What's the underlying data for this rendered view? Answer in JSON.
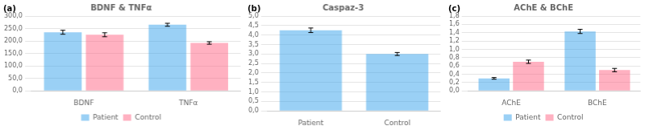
{
  "chart_data": [
    {
      "type": "bar",
      "title": "BDNF & TNFα",
      "annotations": [
        {
          "text": "(a)"
        }
      ],
      "categories": [
        "BDNF",
        "TNFα"
      ],
      "series": [
        {
          "name": "Patient",
          "values": [
            235,
            265
          ],
          "errors": [
            8,
            6
          ]
        },
        {
          "name": "Control",
          "values": [
            225,
            192
          ],
          "errors": [
            8,
            5
          ]
        }
      ],
      "ylim": [
        0,
        300
      ],
      "yticks": [
        {
          "value": 0,
          "label": "0,0"
        },
        {
          "value": 50,
          "label": "50,0"
        },
        {
          "value": 100,
          "label": "100,0"
        },
        {
          "value": 150,
          "label": "150,0"
        },
        {
          "value": 200,
          "label": "200,0"
        },
        {
          "value": 250,
          "label": "250,0"
        },
        {
          "value": 300,
          "label": "300,0"
        }
      ],
      "grid": true,
      "legend": "bottom"
    },
    {
      "type": "bar",
      "title": "Caspaz-3",
      "annotations": [
        {
          "text": "(b)"
        }
      ],
      "categories": [
        "Patient",
        "Control"
      ],
      "values": [
        4.25,
        3.0
      ],
      "errors": [
        0.12,
        0.08
      ],
      "ylim": [
        0,
        5
      ],
      "yticks": [
        {
          "value": 0,
          "label": "0,0"
        },
        {
          "value": 0.5,
          "label": "0,5"
        },
        {
          "value": 1.0,
          "label": "1,0"
        },
        {
          "value": 1.5,
          "label": "1,5"
        },
        {
          "value": 2.0,
          "label": "2,0"
        },
        {
          "value": 2.5,
          "label": "2,5"
        },
        {
          "value": 3.0,
          "label": "3,0"
        },
        {
          "value": 3.5,
          "label": "3,5"
        },
        {
          "value": 4.0,
          "label": "4,0"
        },
        {
          "value": 4.5,
          "label": "4,5"
        },
        {
          "value": 5.0,
          "label": "5,0"
        }
      ],
      "grid": true,
      "legend": false
    },
    {
      "type": "bar",
      "title": "AChE & BChE",
      "annotations": [
        {
          "text": "(c)"
        }
      ],
      "categories": [
        "AChE",
        "BChE"
      ],
      "series": [
        {
          "name": "Patient",
          "values": [
            0.3,
            1.43
          ],
          "errors": [
            0.02,
            0.05
          ]
        },
        {
          "name": "Control",
          "values": [
            0.7,
            0.5
          ],
          "errors": [
            0.04,
            0.04
          ]
        }
      ],
      "ylim": [
        0,
        1.8
      ],
      "yticks": [
        {
          "value": 0,
          "label": "0,0"
        },
        {
          "value": 0.2,
          "label": "0,2"
        },
        {
          "value": 0.4,
          "label": "0,4"
        },
        {
          "value": 0.6,
          "label": "0,6"
        },
        {
          "value": 0.8,
          "label": "0,8"
        },
        {
          "value": 1.0,
          "label": "1,0"
        },
        {
          "value": 1.2,
          "label": "1,2"
        },
        {
          "value": 1.4,
          "label": "1,4"
        },
        {
          "value": 1.6,
          "label": "1,6"
        },
        {
          "value": 1.8,
          "label": "1,8"
        }
      ],
      "grid": true,
      "legend": "bottom"
    }
  ]
}
